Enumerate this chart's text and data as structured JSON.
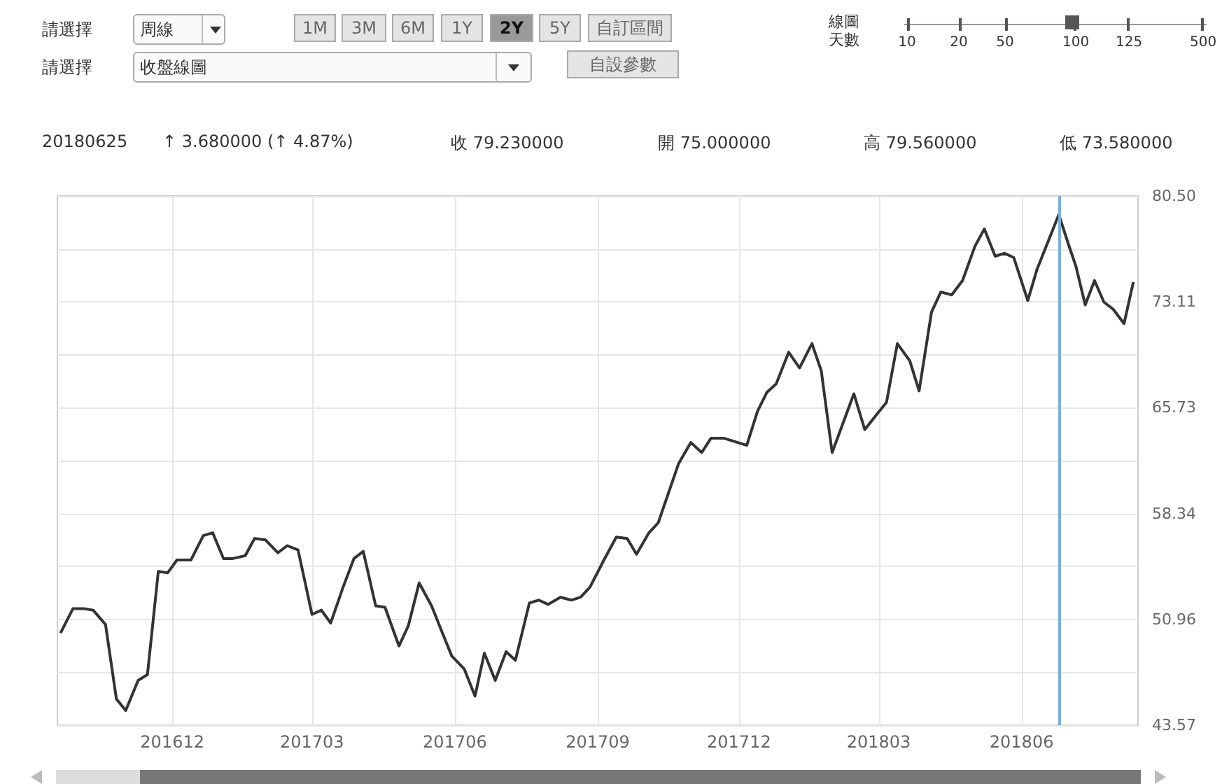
{
  "chart_data": {
    "type": "line",
    "color": "#333333",
    "grid": true,
    "x": [
      "2016-09-20",
      "2016-09-28",
      "2016-10-05",
      "2016-10-11",
      "2016-10-19",
      "2016-10-26",
      "2016-11-01",
      "2016-11-09",
      "2016-11-15",
      "2016-11-22",
      "2016-11-28",
      "2016-12-04",
      "2016-12-13",
      "2016-12-21",
      "2016-12-27",
      "2017-01-03",
      "2017-01-09",
      "2017-01-17",
      "2017-01-23",
      "2017-01-30",
      "2017-02-07",
      "2017-02-13",
      "2017-02-20",
      "2017-03-01",
      "2017-03-07",
      "2017-03-13",
      "2017-03-21",
      "2017-03-28",
      "2017-04-03",
      "2017-04-11",
      "2017-04-17",
      "2017-04-26",
      "2017-05-02",
      "2017-05-09",
      "2017-05-17",
      "2017-05-24",
      "2017-05-30",
      "2017-06-07",
      "2017-06-14",
      "2017-06-20",
      "2017-06-27",
      "2017-07-04",
      "2017-07-10",
      "2017-07-19",
      "2017-07-25",
      "2017-07-31",
      "2017-08-08",
      "2017-08-15",
      "2017-08-21",
      "2017-08-27",
      "2017-09-05",
      "2017-09-13",
      "2017-09-20",
      "2017-09-26",
      "2017-10-04",
      "2017-10-10",
      "2017-10-23",
      "2017-10-31",
      "2017-11-07",
      "2017-11-13",
      "2017-11-21",
      "2017-12-06",
      "2017-12-13",
      "2017-12-19",
      "2017-12-25",
      "2018-01-02",
      "2018-01-09",
      "2018-01-17",
      "2018-01-23",
      "2018-01-30",
      "2018-02-13",
      "2018-02-20",
      "2018-02-28",
      "2018-03-06",
      "2018-03-13",
      "2018-03-21",
      "2018-03-27",
      "2018-04-04",
      "2018-04-10",
      "2018-04-17",
      "2018-04-24",
      "2018-05-02",
      "2018-05-08",
      "2018-05-15",
      "2018-05-21",
      "2018-05-27",
      "2018-06-05",
      "2018-06-11",
      "2018-06-25",
      "2018-07-01",
      "2018-07-06",
      "2018-07-12",
      "2018-07-18",
      "2018-07-24",
      "2018-07-30",
      "2018-08-06",
      "2018-08-12"
    ],
    "values": [
      50.0,
      51.7,
      51.7,
      51.6,
      50.6,
      45.4,
      44.6,
      46.7,
      47.1,
      54.3,
      54.2,
      55.1,
      55.1,
      56.8,
      57.0,
      55.2,
      55.2,
      55.4,
      56.6,
      56.5,
      55.6,
      56.1,
      55.8,
      51.3,
      51.6,
      50.7,
      53.2,
      55.2,
      55.7,
      51.9,
      51.8,
      49.1,
      50.5,
      53.5,
      51.9,
      50.0,
      48.4,
      47.5,
      45.6,
      48.6,
      46.7,
      48.7,
      48.1,
      52.1,
      52.3,
      52.0,
      52.5,
      52.3,
      52.5,
      53.2,
      55.1,
      56.7,
      56.6,
      55.5,
      57.0,
      57.7,
      61.8,
      63.3,
      62.6,
      63.6,
      63.6,
      63.1,
      65.5,
      66.8,
      67.4,
      69.6,
      68.5,
      70.2,
      68.3,
      62.6,
      66.7,
      64.2,
      65.3,
      66.1,
      70.2,
      69.0,
      66.9,
      72.4,
      73.8,
      73.6,
      74.6,
      77.0,
      78.2,
      76.3,
      76.5,
      76.2,
      73.2,
      75.4,
      79.2,
      77.2,
      75.6,
      72.9,
      74.6,
      73.1,
      72.6,
      71.6,
      74.5
    ],
    "xlim": [
      "2016-09-18",
      "2018-08-15"
    ],
    "xticks": [
      {
        "value": "2016-12-01",
        "label": "201612"
      },
      {
        "value": "2017-03-01",
        "label": "201703"
      },
      {
        "value": "2017-06-01",
        "label": "201706"
      },
      {
        "value": "2017-09-01",
        "label": "201709"
      },
      {
        "value": "2017-12-01",
        "label": "201712"
      },
      {
        "value": "2018-03-01",
        "label": "201803"
      },
      {
        "value": "2018-06-01",
        "label": "201806"
      }
    ],
    "ylim": [
      43.57,
      80.5
    ],
    "yticks": [
      43.57,
      {
        "value": 47.27,
        "label": null
      },
      50.96,
      {
        "value": 54.65,
        "label": null
      },
      58.34,
      {
        "value": 62.04,
        "label": null
      },
      65.73,
      {
        "value": 69.42,
        "label": null
      },
      73.11,
      {
        "value": 76.81,
        "label": null
      },
      {
        "value": 80.5,
        "label": "80.50"
      }
    ],
    "ref_lines": [
      {
        "axis": "x",
        "value": "2018-06-25",
        "color": "#6cb4e4"
      }
    ],
    "annotations": [
      "請選擇",
      "周線",
      "1M",
      "3M",
      "6M",
      "1Y",
      "2Y",
      "5Y",
      "自訂區間",
      "線圖",
      "天數",
      "10",
      "20",
      "50",
      "100",
      "125",
      "500",
      "請選擇",
      "收盤線圖",
      "自設參數",
      "20180625",
      "↑ 3.680000 (↑ 4.87%)",
      "收 79.230000",
      "開 75.000000",
      "高 79.560000",
      "低 73.580000"
    ]
  }
}
